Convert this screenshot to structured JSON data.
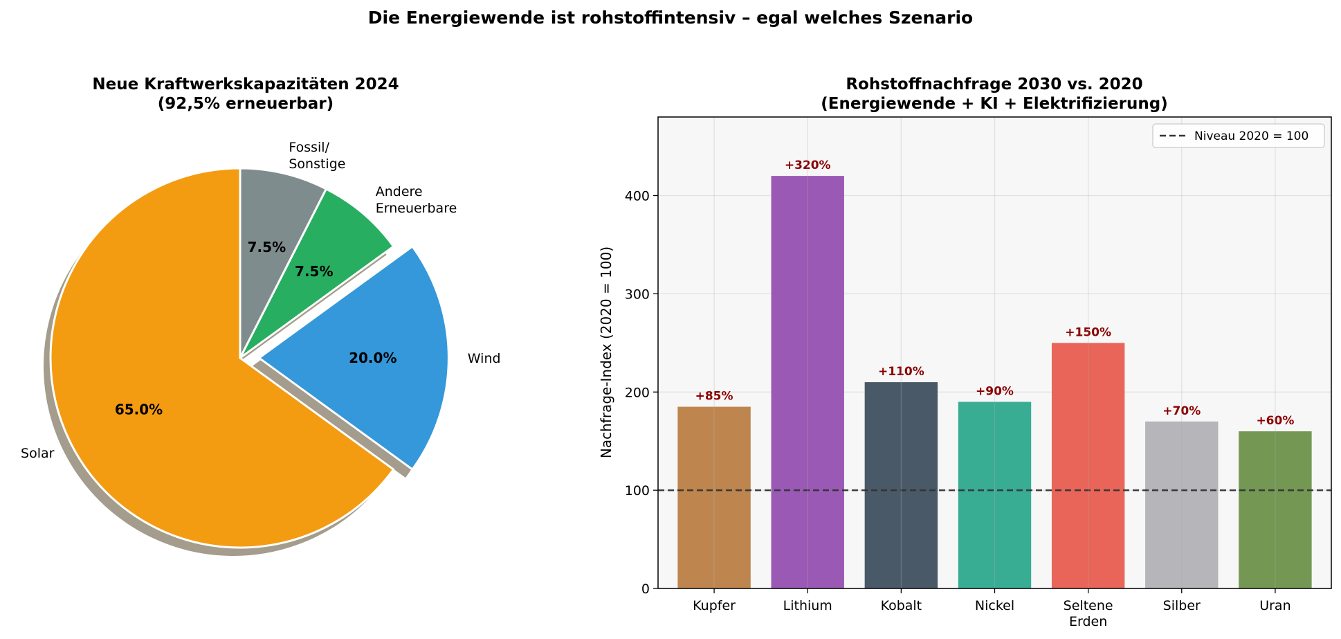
{
  "suptitle": "Die Energiewende ist rohstoffintensiv – egal welches Szenario",
  "chart_data": [
    {
      "type": "pie",
      "title": "Neue Kraftwerkskapazitäten 2024",
      "subtitle": "(92,5% erneuerbar)",
      "start_angle_deg": 90,
      "direction": "counterclockwise",
      "shadow": true,
      "slices": [
        {
          "label": "Solar",
          "value": 65.0,
          "pct_label": "65.0%",
          "color": "#f39c12",
          "exploded": false
        },
        {
          "label": "Wind",
          "value": 20.0,
          "pct_label": "20.0%",
          "color": "#3498db",
          "exploded": true
        },
        {
          "label": "Andere Erneuerbare",
          "value": 7.5,
          "pct_label": "7.5%",
          "color": "#27ae60",
          "exploded": false
        },
        {
          "label": "Fossil/ Sonstige",
          "value": 7.5,
          "pct_label": "7.5%",
          "color": "#7f8c8d",
          "exploded": false
        }
      ]
    },
    {
      "type": "bar",
      "title": "Rohstoffnachfrage 2030 vs. 2020",
      "subtitle": "(Energiewende + KI + Elektrifizierung)",
      "ylabel": "Nachfrage-Index (2020 = 100)",
      "xlabel": "",
      "ylim": [
        0,
        480
      ],
      "yticks": [
        0,
        100,
        200,
        300,
        400
      ],
      "grid": true,
      "reference_line": {
        "value": 100,
        "label": "Niveau 2020 = 100",
        "style": "dashed",
        "color": "#333333"
      },
      "legend_position": "top-right",
      "label_color": "#8b0000",
      "categories": [
        "Kupfer",
        "Lithium",
        "Kobalt",
        "Nickel",
        "Seltene Erden",
        "Silber",
        "Uran"
      ],
      "values": [
        185,
        420,
        210,
        190,
        250,
        170,
        160
      ],
      "bar_labels": [
        "+85%",
        "+320%",
        "+110%",
        "+90%",
        "+150%",
        "+70%",
        "+60%"
      ],
      "colors": [
        "#bf854f",
        "#9b59b6",
        "#4a5967",
        "#38ad94",
        "#e9655a",
        "#b5b5ba",
        "#749854"
      ]
    }
  ]
}
